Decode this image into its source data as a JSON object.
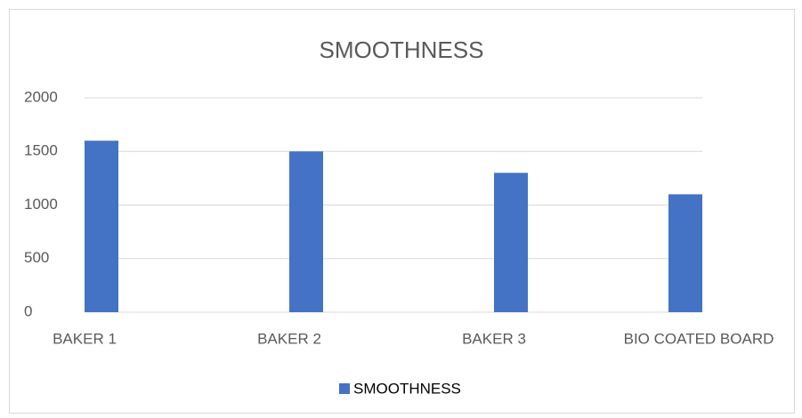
{
  "chart_data": {
    "type": "bar",
    "title": "SMOOTHNESS",
    "categories": [
      "BAKER 1",
      "BAKER 2",
      "BAKER 3",
      "BIO COATED BOARD"
    ],
    "series": [
      {
        "name": "SMOOTHNESS",
        "color": "#4472c4",
        "values": [
          1600,
          1500,
          1300,
          1100
        ]
      }
    ],
    "ylim": [
      0,
      2000
    ],
    "yticks": [
      0,
      500,
      1000,
      1500,
      2000
    ],
    "grid": true,
    "legend": "bottom"
  }
}
